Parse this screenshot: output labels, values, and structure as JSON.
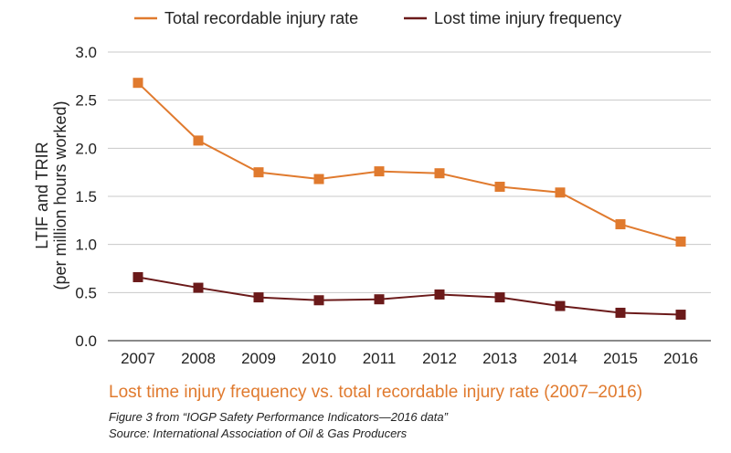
{
  "chart_data": {
    "type": "line",
    "categories": [
      "2007",
      "2008",
      "2009",
      "2010",
      "2011",
      "2012",
      "2013",
      "2014",
      "2015",
      "2016"
    ],
    "series": [
      {
        "name": "Total recordable injury rate",
        "color": "#e07a2e",
        "values": [
          2.68,
          2.08,
          1.75,
          1.68,
          1.76,
          1.74,
          1.6,
          1.54,
          1.21,
          1.03
        ]
      },
      {
        "name": "Lost time injury frequency",
        "color": "#6b1a1a",
        "values": [
          0.66,
          0.55,
          0.45,
          0.42,
          0.43,
          0.48,
          0.45,
          0.36,
          0.29,
          0.27
        ]
      }
    ],
    "ylim": [
      0,
      3.0
    ],
    "yticks": [
      "0.0",
      "0.5",
      "1.0",
      "1.5",
      "2.0",
      "2.5",
      "3.0"
    ],
    "ylabel_line1": "LTIF and TRIR",
    "ylabel_line2": "(per million hours worked)",
    "xlabel": "",
    "grid": true,
    "subtitle": "Lost time injury frequency vs. total recordable injury rate (2007–2016)",
    "caption_line1": "Figure 3 from “IOGP Safety Performance Indicators—2016 data”",
    "caption_line2": "Source: International Association of Oil & Gas Producers"
  }
}
